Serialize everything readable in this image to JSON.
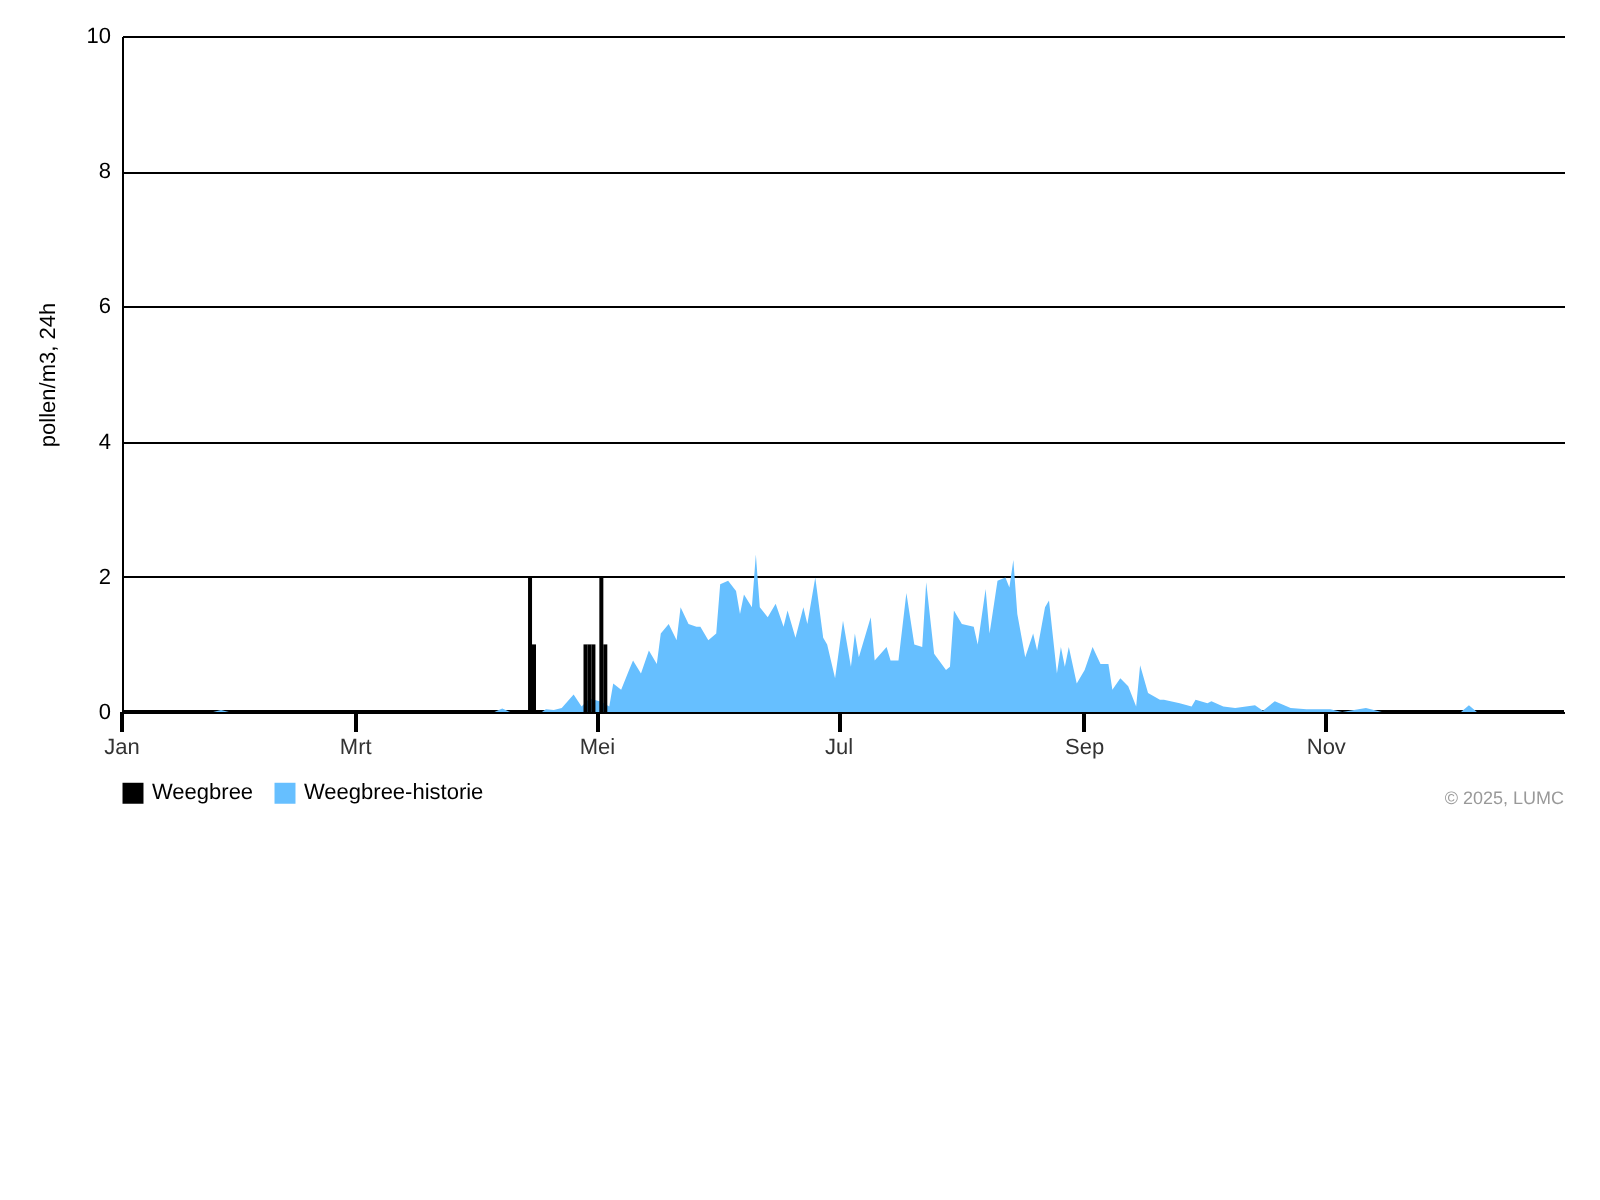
{
  "chart_data": {
    "type": "area",
    "ylabel": "pollen/m3, 24h",
    "xlim": [
      "2025-01-01",
      "2025-12-31"
    ],
    "xticks": [
      {
        "value": "2025-01-01",
        "label": "Jan"
      },
      {
        "value": "2025-03-01",
        "label": "Mrt"
      },
      {
        "value": "2025-05-01",
        "label": "Mei"
      },
      {
        "value": "2025-07-01",
        "label": "Jul"
      },
      {
        "value": "2025-09-01",
        "label": "Sep"
      },
      {
        "value": "2025-11-01",
        "label": "Nov"
      }
    ],
    "ylim": [
      0,
      10
    ],
    "yticks": [
      0,
      2,
      4,
      6,
      8,
      10
    ],
    "grid": "y",
    "legend": "bottom",
    "annotations": [
      "© 2025, LUMC"
    ],
    "series": [
      {
        "name": "Weegbree",
        "type": "bar",
        "color": "#000000",
        "x": [
          "2025-04-14",
          "2025-04-15",
          "2025-04-28",
          "2025-04-29",
          "2025-04-30",
          "2025-05-02",
          "2025-05-03"
        ],
        "values": [
          2,
          1,
          1,
          1,
          1,
          2,
          1
        ]
      },
      {
        "name": "Weegbree-historie",
        "color": "#66bfff",
        "x": [
          "2025-01-01",
          "2025-01-24",
          "2025-01-26",
          "2025-01-28",
          "2025-04-05",
          "2025-04-07",
          "2025-04-09",
          "2025-04-17",
          "2025-04-18",
          "2025-04-20",
          "2025-04-22",
          "2025-04-25",
          "2025-04-27",
          "2025-04-29",
          "2025-05-02",
          "2025-05-04",
          "2025-05-05",
          "2025-05-07",
          "2025-05-09",
          "2025-05-10",
          "2025-05-12",
          "2025-05-14",
          "2025-05-16",
          "2025-05-17",
          "2025-05-19",
          "2025-05-21",
          "2025-05-22",
          "2025-05-24",
          "2025-05-26",
          "2025-05-27",
          "2025-05-29",
          "2025-05-31",
          "2025-06-01",
          "2025-06-03",
          "2025-06-05",
          "2025-06-06",
          "2025-06-07",
          "2025-06-09",
          "2025-06-10",
          "2025-06-11",
          "2025-06-13",
          "2025-06-15",
          "2025-06-17",
          "2025-06-18",
          "2025-06-20",
          "2025-06-22",
          "2025-06-23",
          "2025-06-25",
          "2025-06-27",
          "2025-06-28",
          "2025-06-30",
          "2025-07-02",
          "2025-07-04",
          "2025-07-05",
          "2025-07-06",
          "2025-07-09",
          "2025-07-10",
          "2025-07-13",
          "2025-07-14",
          "2025-07-16",
          "2025-07-18",
          "2025-07-20",
          "2025-07-22",
          "2025-07-23",
          "2025-07-25",
          "2025-07-28",
          "2025-07-29",
          "2025-07-30",
          "2025-08-01",
          "2025-08-04",
          "2025-08-05",
          "2025-08-07",
          "2025-08-08",
          "2025-08-10",
          "2025-08-12",
          "2025-08-13",
          "2025-08-14",
          "2025-08-15",
          "2025-08-17",
          "2025-08-19",
          "2025-08-20",
          "2025-08-22",
          "2025-08-23",
          "2025-08-25",
          "2025-08-26",
          "2025-08-27",
          "2025-08-28",
          "2025-08-30",
          "2025-09-01",
          "2025-09-03",
          "2025-09-05",
          "2025-09-07",
          "2025-09-08",
          "2025-09-10",
          "2025-09-12",
          "2025-09-14",
          "2025-09-15",
          "2025-09-17",
          "2025-09-20",
          "2025-09-21",
          "2025-09-25",
          "2025-09-28",
          "2025-09-29",
          "2025-10-02",
          "2025-10-03",
          "2025-10-06",
          "2025-10-09",
          "2025-10-14",
          "2025-10-16",
          "2025-10-19",
          "2025-10-23",
          "2025-10-27",
          "2025-11-02",
          "2025-11-05",
          "2025-11-11",
          "2025-11-15",
          "2025-12-05",
          "2025-12-07",
          "2025-12-09",
          "2025-12-31"
        ],
        "values": [
          0,
          0,
          0.03,
          0,
          0,
          0.05,
          0,
          0,
          0.04,
          0.03,
          0.06,
          0.26,
          0.08,
          0.2,
          0.15,
          0.08,
          0.42,
          0.33,
          0.62,
          0.76,
          0.57,
          0.91,
          0.71,
          1.16,
          1.3,
          1.06,
          1.55,
          1.3,
          1.26,
          1.26,
          1.06,
          1.16,
          1.89,
          1.94,
          1.79,
          1.45,
          1.74,
          1.55,
          2.33,
          1.55,
          1.4,
          1.6,
          1.26,
          1.5,
          1.1,
          1.55,
          1.3,
          1.99,
          1.1,
          1.0,
          0.5,
          1.35,
          0.67,
          1.16,
          0.81,
          1.4,
          0.76,
          0.96,
          0.76,
          0.76,
          1.76,
          1.0,
          0.96,
          1.92,
          0.86,
          0.62,
          0.67,
          1.5,
          1.3,
          1.26,
          1.0,
          1.82,
          1.16,
          1.94,
          1.99,
          1.84,
          2.25,
          1.45,
          0.81,
          1.16,
          0.91,
          1.55,
          1.65,
          0.57,
          0.96,
          0.67,
          0.96,
          0.42,
          0.62,
          0.96,
          0.71,
          0.71,
          0.33,
          0.5,
          0.38,
          0.08,
          0.69,
          0.28,
          0.18,
          0.18,
          0.13,
          0.08,
          0.18,
          0.13,
          0.16,
          0.08,
          0.06,
          0.1,
          0.02,
          0.16,
          0.06,
          0.04,
          0.04,
          0,
          0.06,
          0,
          0,
          0.1,
          0,
          0
        ]
      }
    ]
  }
}
